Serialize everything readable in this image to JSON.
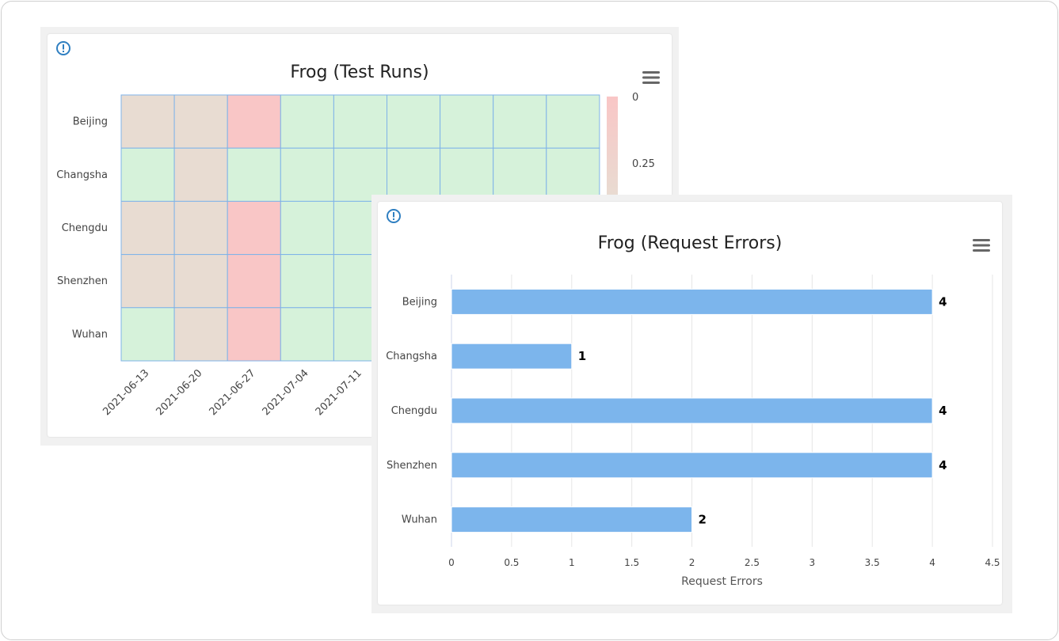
{
  "colors": {
    "cell_green": "#d6f2da",
    "cell_tan": "#e8dcd2",
    "cell_pink": "#f9c6c6",
    "cell_border": "#7fb3e8",
    "bar": "#7cb5ec",
    "grid": "#e6e6e6",
    "info_icon": "#2f7fc1"
  },
  "heatmap_card": {
    "info_icon": "info-circle-icon",
    "menu_icon": "hamburger-menu-icon"
  },
  "bar_card": {
    "info_icon": "info-circle-icon",
    "menu_icon": "hamburger-menu-icon"
  },
  "chart_data": [
    {
      "type": "heatmap",
      "title": "Frog (Test Runs)",
      "y_categories": [
        "Beijing",
        "Changsha",
        "Chengdu",
        "Shenzhen",
        "Wuhan"
      ],
      "x_categories": [
        "2021-06-13",
        "2021-06-20",
        "2021-06-27",
        "2021-07-04",
        "2021-07-11",
        "",
        "",
        "",
        ""
      ],
      "cell_states": [
        [
          "tan",
          "tan",
          "pink",
          "green",
          "green",
          "green",
          "green",
          "green",
          "green"
        ],
        [
          "green",
          "tan",
          "green",
          "green",
          "green",
          "green",
          "green",
          "green",
          "green"
        ],
        [
          "tan",
          "tan",
          "pink",
          "green",
          "green",
          "green",
          "green",
          "green",
          "green"
        ],
        [
          "tan",
          "tan",
          "pink",
          "green",
          "green",
          "green",
          "green",
          "green",
          "green"
        ],
        [
          "green",
          "tan",
          "pink",
          "green",
          "green",
          "green",
          "green",
          "green",
          "green"
        ]
      ],
      "color_axis_ticks": [
        "0",
        "0.25"
      ]
    },
    {
      "type": "bar",
      "orientation": "horizontal",
      "title": "Frog (Request Errors)",
      "categories": [
        "Beijing",
        "Changsha",
        "Chengdu",
        "Shenzhen",
        "Wuhan"
      ],
      "values": [
        4,
        1,
        4,
        4,
        2
      ],
      "data_labels": [
        "4",
        "1",
        "4",
        "4",
        "2"
      ],
      "xlabel": "Request Errors",
      "xlim": [
        0,
        4.5
      ],
      "x_ticks": [
        "0",
        "0.5",
        "1",
        "1.5",
        "2",
        "2.5",
        "3",
        "3.5",
        "4",
        "4.5"
      ],
      "grid": true
    }
  ]
}
